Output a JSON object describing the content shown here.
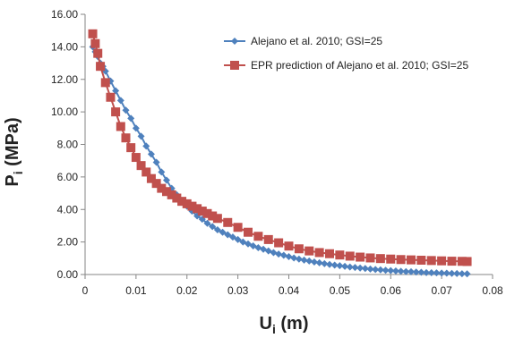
{
  "chart_data": {
    "type": "scatter",
    "title": "",
    "xlabel": "Ui (m)",
    "ylabel": "Pi (MPa)",
    "xlabel_main": "U",
    "xlabel_sub": "i",
    "xlabel_unit": " (m)",
    "ylabel_main": "P",
    "ylabel_sub": "i",
    "ylabel_unit": " (MPa)",
    "xlim": [
      0,
      0.08
    ],
    "ylim": [
      0,
      16
    ],
    "x_ticks": [
      "0",
      "0.01",
      "0.02",
      "0.03",
      "0.04",
      "0.05",
      "0.06",
      "0.07",
      "0.08"
    ],
    "y_ticks": [
      "0.00",
      "2.00",
      "4.00",
      "6.00",
      "8.00",
      "10.00",
      "12.00",
      "14.00",
      "16.00"
    ],
    "grid": false,
    "legend_position": "top-right",
    "series": [
      {
        "name": "Alejano et al. 2010; GSI=25",
        "color": "#4F81BD",
        "marker": "diamond",
        "x": [
          0.0015,
          0.002,
          0.0025,
          0.003,
          0.0035,
          0.004,
          0.005,
          0.006,
          0.007,
          0.008,
          0.009,
          0.01,
          0.011,
          0.012,
          0.013,
          0.014,
          0.015,
          0.016,
          0.017,
          0.018,
          0.019,
          0.02,
          0.021,
          0.022,
          0.023,
          0.024,
          0.025,
          0.026,
          0.027,
          0.028,
          0.029,
          0.03,
          0.031,
          0.032,
          0.033,
          0.034,
          0.035,
          0.036,
          0.037,
          0.038,
          0.039,
          0.04,
          0.041,
          0.042,
          0.043,
          0.044,
          0.045,
          0.046,
          0.047,
          0.048,
          0.049,
          0.05,
          0.051,
          0.052,
          0.053,
          0.054,
          0.055,
          0.056,
          0.057,
          0.058,
          0.059,
          0.06,
          0.061,
          0.062,
          0.063,
          0.064,
          0.065,
          0.066,
          0.067,
          0.068,
          0.069,
          0.07,
          0.071,
          0.072,
          0.073,
          0.074,
          0.075
        ],
        "y": [
          14.0,
          13.7,
          13.4,
          13.0,
          12.8,
          12.5,
          11.9,
          11.3,
          10.7,
          10.1,
          9.6,
          9.0,
          8.5,
          7.9,
          7.4,
          6.9,
          6.3,
          5.8,
          5.3,
          4.9,
          4.5,
          4.2,
          3.9,
          3.6,
          3.4,
          3.15,
          2.95,
          2.75,
          2.6,
          2.45,
          2.3,
          2.15,
          2.0,
          1.88,
          1.76,
          1.65,
          1.55,
          1.45,
          1.35,
          1.26,
          1.18,
          1.1,
          1.02,
          0.95,
          0.89,
          0.83,
          0.77,
          0.72,
          0.67,
          0.62,
          0.58,
          0.54,
          0.5,
          0.46,
          0.43,
          0.4,
          0.37,
          0.34,
          0.31,
          0.29,
          0.26,
          0.24,
          0.22,
          0.2,
          0.18,
          0.17,
          0.15,
          0.14,
          0.12,
          0.11,
          0.1,
          0.09,
          0.08,
          0.07,
          0.06,
          0.05,
          0.04
        ]
      },
      {
        "name": "EPR prediction of Alejano et al. 2010; GSI=25",
        "color": "#C0504D",
        "marker": "square",
        "x": [
          0.0015,
          0.002,
          0.0025,
          0.003,
          0.004,
          0.005,
          0.006,
          0.007,
          0.008,
          0.009,
          0.01,
          0.011,
          0.012,
          0.013,
          0.014,
          0.015,
          0.016,
          0.017,
          0.018,
          0.019,
          0.02,
          0.021,
          0.022,
          0.023,
          0.024,
          0.025,
          0.026,
          0.028,
          0.03,
          0.032,
          0.034,
          0.036,
          0.038,
          0.04,
          0.042,
          0.044,
          0.046,
          0.048,
          0.05,
          0.052,
          0.054,
          0.056,
          0.058,
          0.06,
          0.062,
          0.064,
          0.066,
          0.068,
          0.07,
          0.072,
          0.074,
          0.075
        ],
        "y": [
          14.8,
          14.2,
          13.6,
          12.8,
          11.8,
          10.9,
          10.0,
          9.1,
          8.4,
          7.8,
          7.2,
          6.7,
          6.3,
          5.9,
          5.6,
          5.3,
          5.1,
          4.9,
          4.7,
          4.5,
          4.35,
          4.2,
          4.05,
          3.9,
          3.75,
          3.6,
          3.45,
          3.2,
          2.9,
          2.6,
          2.35,
          2.15,
          1.95,
          1.75,
          1.58,
          1.45,
          1.35,
          1.28,
          1.2,
          1.13,
          1.07,
          1.02,
          0.98,
          0.95,
          0.92,
          0.9,
          0.88,
          0.86,
          0.84,
          0.82,
          0.81,
          0.8
        ]
      }
    ]
  }
}
